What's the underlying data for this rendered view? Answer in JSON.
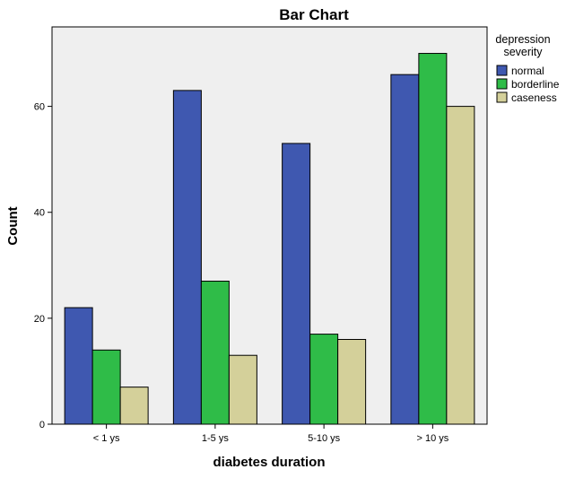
{
  "chart_data": {
    "type": "bar",
    "title": "Bar Chart",
    "xlabel": "diabetes duration",
    "ylabel": "Count",
    "categories": [
      "< 1 ys",
      "1-5 ys",
      "5-10 ys",
      "> 10 ys"
    ],
    "series": [
      {
        "name": "normal",
        "values": [
          22,
          63,
          53,
          66
        ],
        "color": "#3f58b0"
      },
      {
        "name": "borderline",
        "values": [
          14,
          27,
          17,
          70
        ],
        "color": "#2fbc48"
      },
      {
        "name": "caseness",
        "values": [
          7,
          13,
          16,
          60
        ],
        "color": "#d4d09a"
      }
    ],
    "ylim": [
      0,
      75
    ],
    "yticks": [
      0,
      20,
      40,
      60
    ],
    "legend": {
      "title_lines": [
        "depression",
        "severity"
      ],
      "position": "right"
    },
    "grid": false,
    "plot_background": "#efefef"
  }
}
